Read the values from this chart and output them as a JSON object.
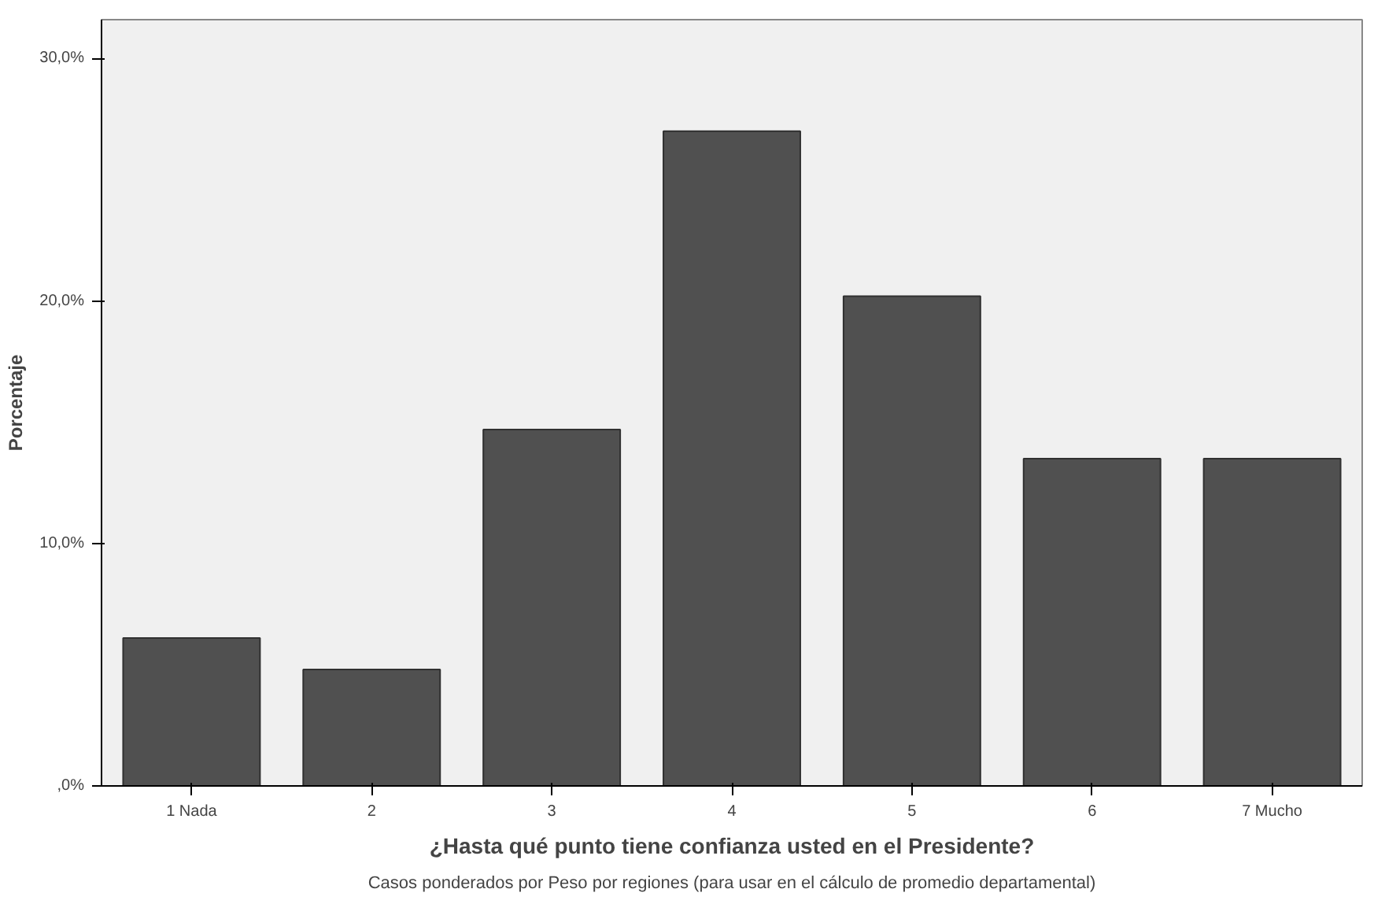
{
  "chart_data": {
    "type": "bar",
    "xlabel": "¿Hasta qué punto tiene confianza usted en el Presidente?",
    "ylabel": "Porcentaje",
    "categories": [
      "1 Nada",
      "2",
      "3",
      "4",
      "5",
      "6",
      "7 Mucho"
    ],
    "values": [
      6.1,
      4.8,
      14.7,
      27.0,
      20.2,
      13.5,
      13.5
    ],
    "color": "#505050",
    "ylim": [
      0,
      31.6
    ],
    "yticks": [
      {
        "value": 0,
        "label": ",0%"
      },
      {
        "value": 10,
        "label": "10,0%"
      },
      {
        "value": 20,
        "label": "20,0%"
      },
      {
        "value": 30,
        "label": "30,0%"
      }
    ],
    "grid": false,
    "annotations": [
      "Casos ponderados por Peso por regiones (para usar en el cálculo de promedio departamental)"
    ]
  }
}
